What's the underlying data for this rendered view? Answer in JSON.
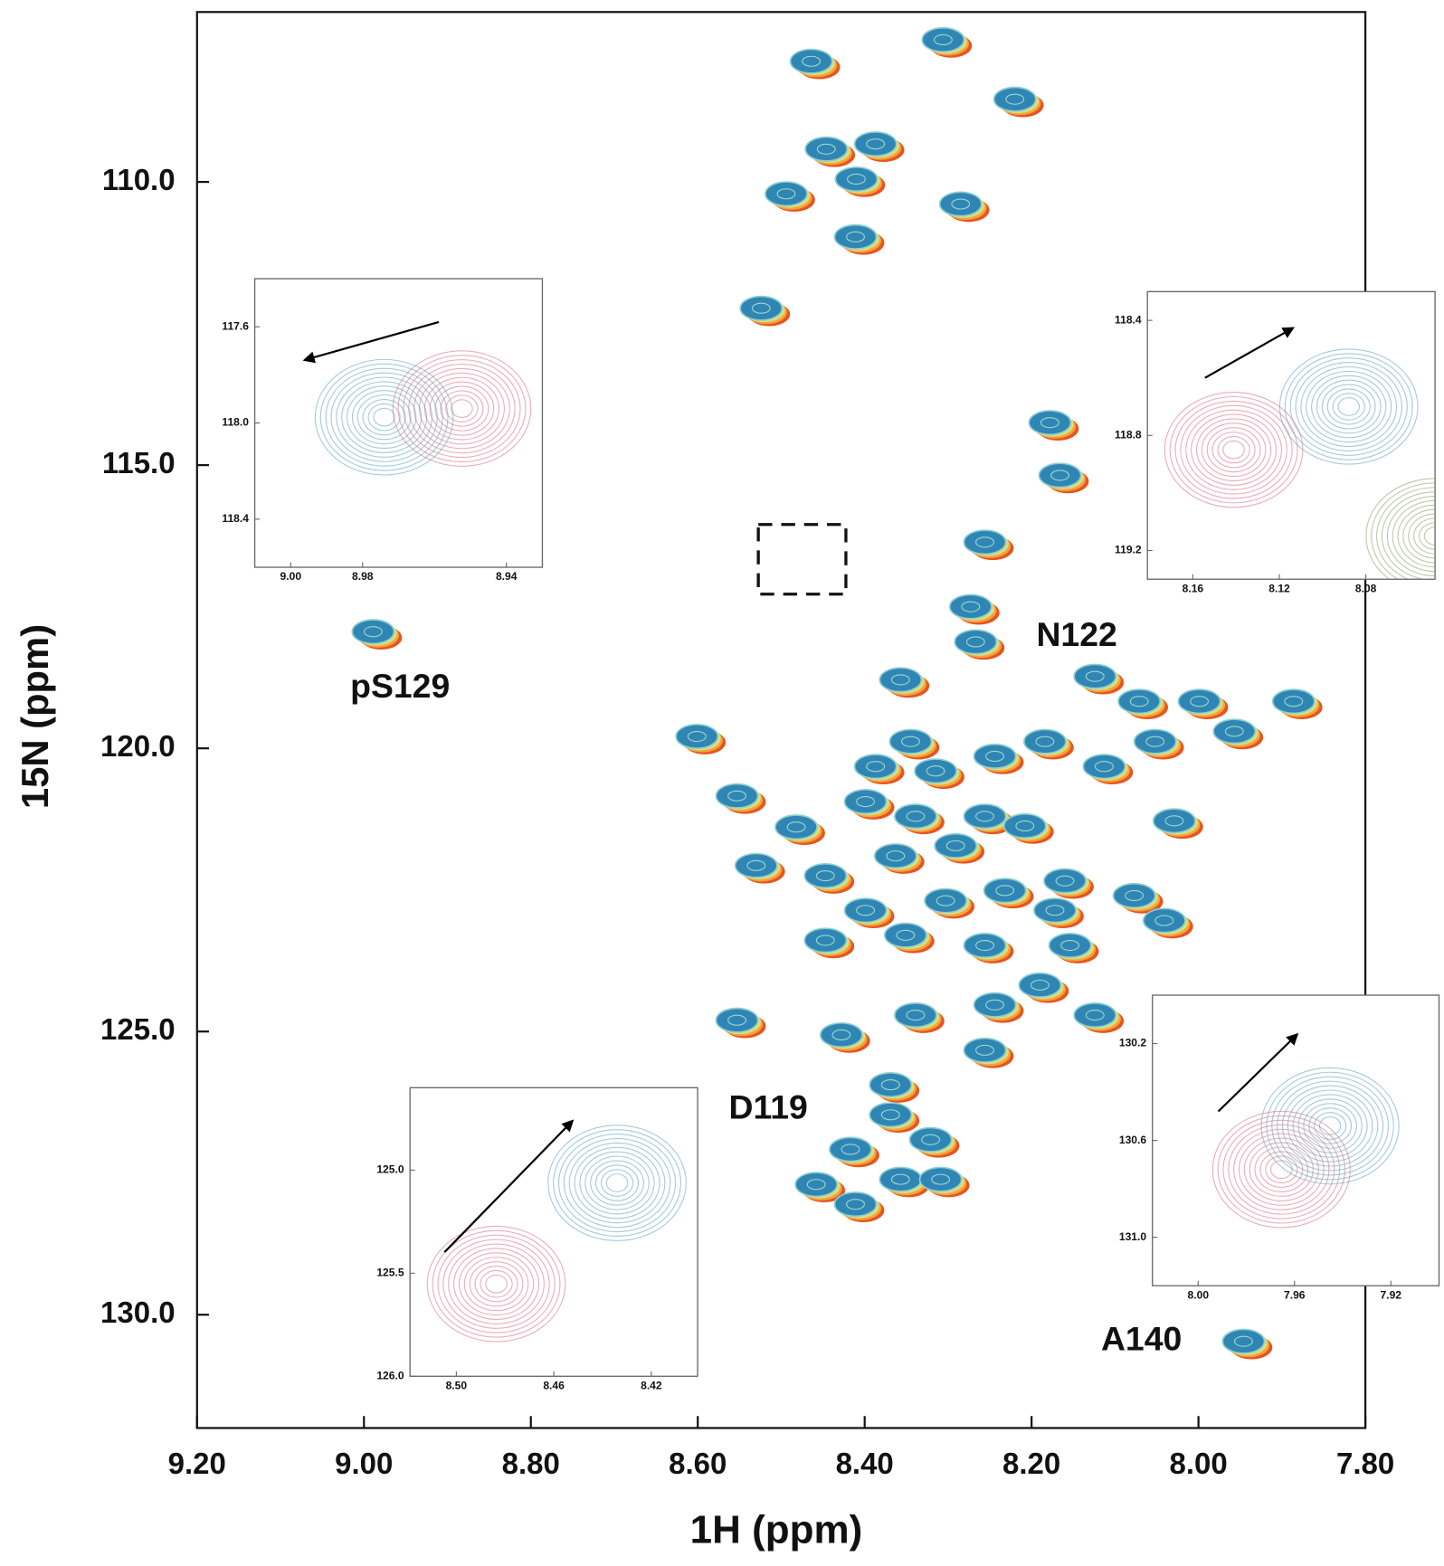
{
  "chart_data": [
    {
      "type": "scatter",
      "xlabel": "1H (ppm)",
      "ylabel": "15N (ppm)",
      "xlim": [
        9.2,
        7.8
      ],
      "ylim": [
        107,
        132
      ],
      "xticks": [
        {
          "value": 9.2,
          "label": "9.20"
        },
        {
          "value": 9.0,
          "label": "9.00"
        },
        {
          "value": 8.8,
          "label": "8.80"
        },
        {
          "value": 8.6,
          "label": "8.60"
        },
        {
          "value": 8.4,
          "label": "8.40"
        },
        {
          "value": 8.2,
          "label": "8.20"
        },
        {
          "value": 8.0,
          "label": "8.00"
        },
        {
          "value": 7.8,
          "label": "7.80"
        }
      ],
      "yticks": [
        {
          "value": 110,
          "label": "110.0"
        },
        {
          "value": 115,
          "label": "115.0"
        },
        {
          "value": 120,
          "label": "120.0"
        },
        {
          "value": 125,
          "label": "125.0"
        },
        {
          "value": 130,
          "label": "130.0"
        }
      ],
      "color": "#2f86b5",
      "x": [
        8.464,
        8.306,
        8.22,
        8.387,
        8.446,
        8.494,
        8.41,
        8.285,
        8.411,
        8.524,
        8.178,
        8.166,
        8.256,
        8.273,
        8.267,
        8.989,
        8.124,
        8.357,
        8.601,
        8.553,
        8.345,
        8.184,
        8.071,
        7.999,
        7.886,
        7.957,
        8.052,
        8.387,
        8.315,
        8.244,
        8.113,
        8.029,
        8.482,
        8.399,
        8.339,
        8.256,
        8.208,
        8.53,
        8.447,
        8.363,
        8.291,
        8.16,
        8.077,
        8.399,
        8.303,
        8.232,
        8.172,
        8.041,
        8.447,
        8.351,
        8.256,
        8.154,
        8.19,
        8.244,
        8.339,
        8.428,
        8.553,
        8.256,
        8.124,
        8.369,
        8.369,
        8.321,
        8.417,
        8.458,
        8.411,
        8.357,
        8.309,
        7.946
      ],
      "values": [
        107.87,
        107.49,
        108.54,
        109.33,
        109.42,
        110.21,
        109.95,
        110.39,
        110.97,
        112.23,
        114.25,
        115.18,
        116.36,
        117.5,
        118.12,
        117.94,
        118.73,
        118.79,
        119.79,
        120.84,
        119.88,
        119.88,
        119.17,
        119.17,
        119.17,
        119.7,
        119.88,
        120.32,
        120.4,
        120.14,
        120.32,
        121.28,
        121.39,
        120.94,
        121.2,
        121.2,
        121.37,
        122.07,
        122.25,
        121.9,
        121.72,
        122.34,
        122.6,
        122.86,
        122.69,
        122.51,
        122.86,
        123.04,
        123.39,
        123.3,
        123.48,
        123.48,
        124.18,
        124.53,
        124.71,
        125.06,
        124.8,
        125.33,
        124.71,
        125.94,
        126.47,
        126.91,
        127.08,
        127.7,
        128.05,
        127.61,
        127.61,
        130.47
      ],
      "annotations": [
        "pS129",
        "N122",
        "D119",
        "A140"
      ]
    },
    {
      "type": "contour",
      "xlim": [
        9.01,
        8.93
      ],
      "ylim": [
        117.4,
        118.6
      ],
      "xticks": [
        {
          "value": 9.0,
          "label": "9.00"
        },
        8.98,
        8.94
      ],
      "yticks": [
        117.6,
        {
          "value": 118.0,
          "label": "118.0"
        },
        118.4
      ]
    },
    {
      "type": "contour",
      "xlim": [
        8.181,
        8.048
      ],
      "ylim": [
        118.3,
        119.3
      ],
      "xticks": [
        8.16,
        8.12,
        8.08
      ],
      "yticks": [
        118.4,
        118.8,
        119.2
      ]
    },
    {
      "type": "contour",
      "xlim": [
        8.519,
        8.401
      ],
      "ylim": [
        124.6,
        126.0
      ],
      "xticks": [
        {
          "value": 8.5,
          "label": "8.50"
        },
        8.46,
        8.42
      ],
      "yticks": [
        {
          "value": 125.0,
          "label": "125.0"
        },
        125.5,
        {
          "value": 126.0,
          "label": "126.0"
        }
      ]
    },
    {
      "type": "contour",
      "xlim": [
        8.019,
        7.9
      ],
      "ylim": [
        130.0,
        131.2
      ],
      "xticks": [
        {
          "value": 8.0,
          "label": "8.00"
        },
        7.96,
        7.92
      ],
      "yticks": [
        130.2,
        130.6,
        {
          "value": 131.0,
          "label": "131.0"
        }
      ]
    }
  ]
}
